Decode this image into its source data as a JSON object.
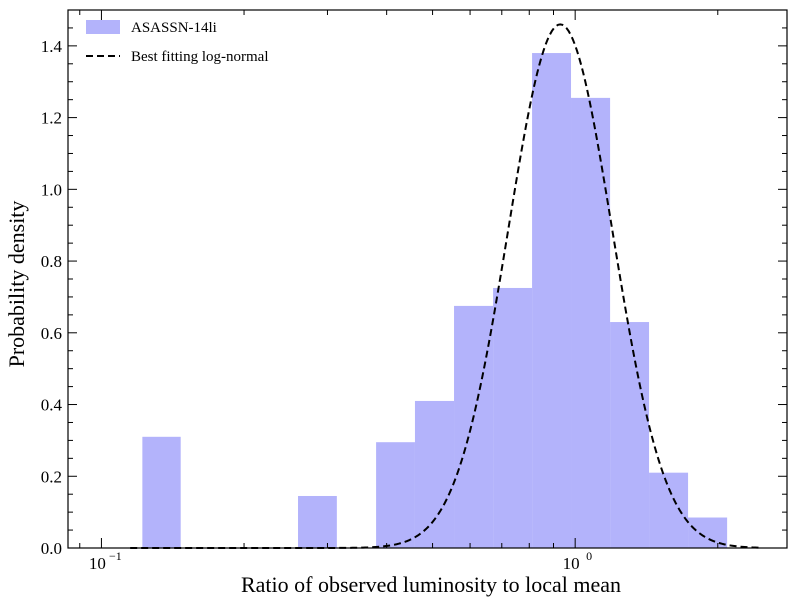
{
  "chart_data": {
    "type": "bar",
    "xscale": "log",
    "xlabel": "Ratio of observed luminosity to local mean",
    "ylabel": "Probability density",
    "xlim": [
      0.085,
      2.8
    ],
    "ylim": [
      0.0,
      1.5
    ],
    "x_ticks": [
      {
        "value": 0.1,
        "base": "10",
        "exp": "−1"
      },
      {
        "value": 1.0,
        "base": "10",
        "exp": "0"
      }
    ],
    "y_ticks": [
      "0.0",
      "0.2",
      "0.4",
      "0.6",
      "0.8",
      "1.0",
      "1.2",
      "1.4"
    ],
    "legend": {
      "position": "top-left",
      "entries": [
        "ASASSN-14li",
        "Best fitting log-normal"
      ]
    },
    "series": [
      {
        "name": "ASASSN-14li",
        "kind": "histogram",
        "color": "#b3b3fb",
        "bins": [
          {
            "left": 0.122,
            "right": 0.147,
            "density": 0.31
          },
          {
            "left": 0.147,
            "right": 0.178,
            "density": 0.0
          },
          {
            "left": 0.178,
            "right": 0.215,
            "density": 0.0
          },
          {
            "left": 0.215,
            "right": 0.26,
            "density": 0.0
          },
          {
            "left": 0.26,
            "right": 0.314,
            "density": 0.145
          },
          {
            "left": 0.314,
            "right": 0.38,
            "density": 0.0
          },
          {
            "left": 0.38,
            "right": 0.459,
            "density": 0.295
          },
          {
            "left": 0.459,
            "right": 0.555,
            "density": 0.41
          },
          {
            "left": 0.555,
            "right": 0.671,
            "density": 0.675
          },
          {
            "left": 0.671,
            "right": 0.811,
            "density": 0.725
          },
          {
            "left": 0.811,
            "right": 0.98,
            "density": 1.38
          },
          {
            "left": 0.98,
            "right": 1.185,
            "density": 1.255
          },
          {
            "left": 1.185,
            "right": 1.432,
            "density": 0.63
          },
          {
            "left": 1.432,
            "right": 1.731,
            "density": 0.21
          },
          {
            "left": 1.731,
            "right": 2.093,
            "density": 0.085
          }
        ]
      },
      {
        "name": "Best fitting log-normal",
        "kind": "curve",
        "style": "dashed",
        "color": "#000000",
        "peak_x": 0.93,
        "peak_density": 1.46,
        "sigma_log10": 0.11,
        "x_range": [
          0.115,
          2.45
        ]
      }
    ]
  }
}
